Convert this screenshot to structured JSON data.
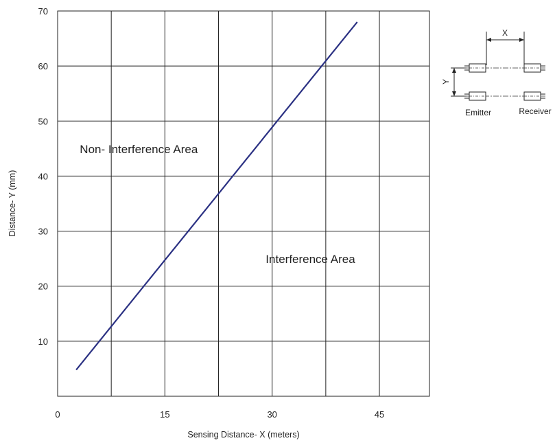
{
  "chart_data": {
    "type": "line",
    "title": "",
    "xlabel": "Sensing Distance- X (meters)",
    "ylabel": "Distance- Y (mm)",
    "xlim": [
      0,
      52
    ],
    "ylim": [
      0,
      70
    ],
    "x_ticks": [
      "0",
      "15",
      "30",
      "45"
    ],
    "y_ticks": [
      "10",
      "20",
      "30",
      "40",
      "50",
      "60",
      "70"
    ],
    "grid": true,
    "series": [
      {
        "color": "#2b3183",
        "x": [
          2.6,
          41.9
        ],
        "y": [
          4.8,
          68.0
        ]
      }
    ],
    "annotations": [
      {
        "text": "Non- Interference Area",
        "x": 3.1,
        "y": 44.2
      },
      {
        "text": "Interference Area",
        "x": 29.1,
        "y": 24.2
      }
    ]
  },
  "diagram": {
    "x_label": "X",
    "y_label": "Y",
    "emitter_label": "Emitter",
    "receiver_label": "Receiver"
  }
}
